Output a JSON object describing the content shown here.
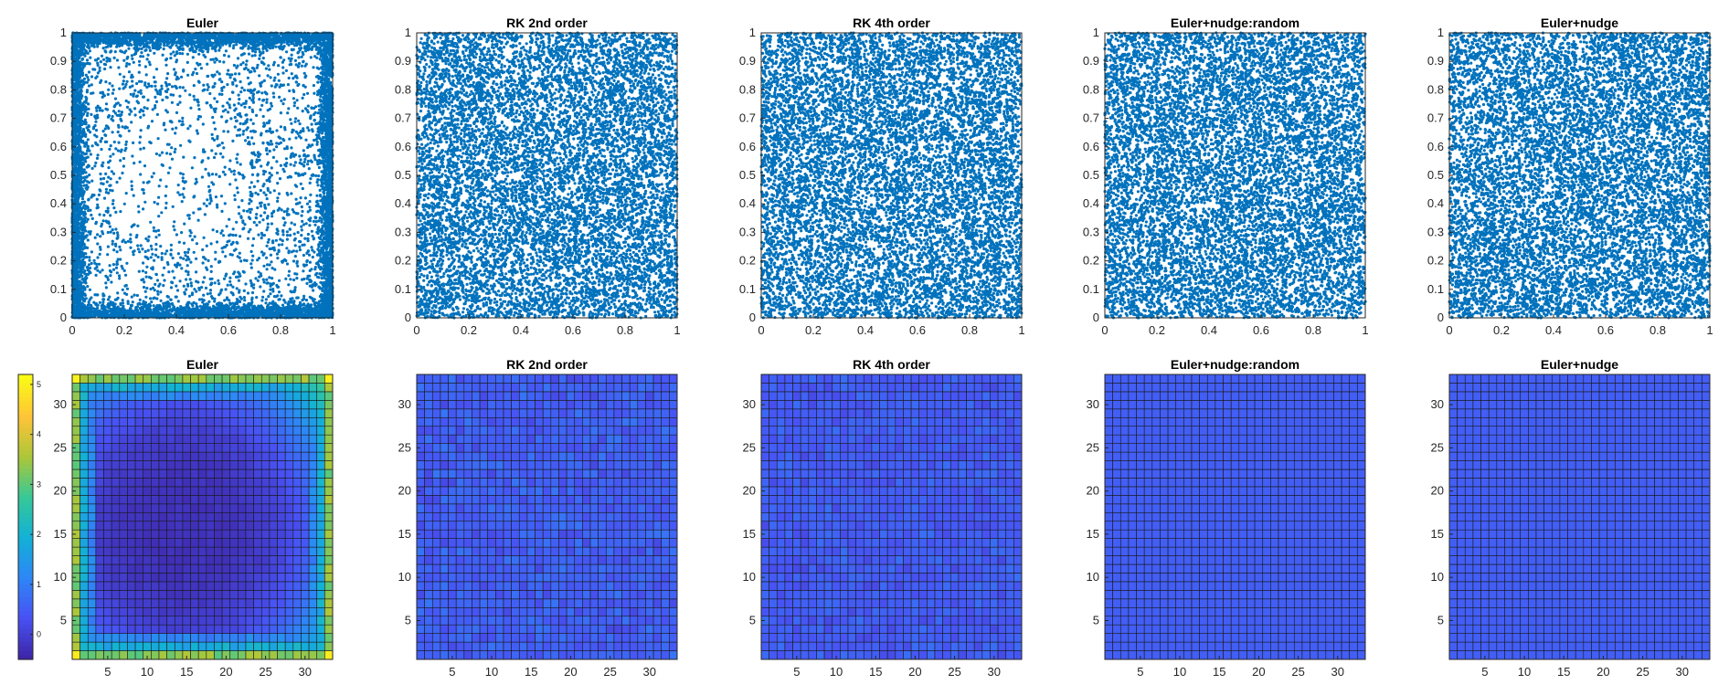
{
  "figure": {
    "colorbar": {
      "ticks": [
        0,
        1,
        2,
        3,
        4,
        5
      ],
      "range": [
        -0.5,
        5.2
      ],
      "colormap": "parula"
    }
  },
  "chart_data": [
    {
      "type": "scatter",
      "title": "Euler",
      "xlabel": "",
      "ylabel": "",
      "xlim": [
        0,
        1
      ],
      "ylim": [
        0,
        1
      ],
      "xticks": [
        "0",
        "0.2",
        "0.4",
        "0.6",
        "0.8",
        "1"
      ],
      "yticks": [
        "0",
        "0.1",
        "0.2",
        "0.3",
        "0.4",
        "0.5",
        "0.6",
        "0.7",
        "0.8",
        "0.9",
        "1"
      ],
      "marker_color": "#0072BD",
      "distribution": "edge-concentrated",
      "approx_points": 10000,
      "grid": false
    },
    {
      "type": "scatter",
      "title": "RK 2nd order",
      "xlabel": "",
      "ylabel": "",
      "xlim": [
        0,
        1
      ],
      "ylim": [
        0,
        1
      ],
      "xticks": [
        "0",
        "0.2",
        "0.4",
        "0.6",
        "0.8",
        "1"
      ],
      "yticks": [
        "0",
        "0.1",
        "0.2",
        "0.3",
        "0.4",
        "0.5",
        "0.6",
        "0.7",
        "0.8",
        "0.9",
        "1"
      ],
      "marker_color": "#0072BD",
      "distribution": "near-uniform",
      "approx_points": 10000,
      "grid": false
    },
    {
      "type": "scatter",
      "title": "RK 4th order",
      "xlabel": "",
      "ylabel": "",
      "xlim": [
        0,
        1
      ],
      "ylim": [
        0,
        1
      ],
      "xticks": [
        "0",
        "0.2",
        "0.4",
        "0.6",
        "0.8",
        "1"
      ],
      "yticks": [
        "0",
        "0.1",
        "0.2",
        "0.3",
        "0.4",
        "0.5",
        "0.6",
        "0.7",
        "0.8",
        "0.9",
        "1"
      ],
      "marker_color": "#0072BD",
      "distribution": "near-uniform",
      "approx_points": 10000,
      "grid": false
    },
    {
      "type": "scatter",
      "title": "Euler+nudge:random",
      "xlabel": "",
      "ylabel": "",
      "xlim": [
        0,
        1
      ],
      "ylim": [
        0,
        1
      ],
      "xticks": [
        "0",
        "0.2",
        "0.4",
        "0.6",
        "0.8",
        "1"
      ],
      "yticks": [
        "0",
        "0.1",
        "0.2",
        "0.3",
        "0.4",
        "0.5",
        "0.6",
        "0.7",
        "0.8",
        "0.9",
        "1"
      ],
      "marker_color": "#0072BD",
      "distribution": "uniform",
      "approx_points": 10000,
      "grid": false
    },
    {
      "type": "scatter",
      "title": "Euler+nudge",
      "xlabel": "",
      "ylabel": "",
      "xlim": [
        0,
        1
      ],
      "ylim": [
        0,
        1
      ],
      "xticks": [
        "0",
        "0.2",
        "0.4",
        "0.6",
        "0.8",
        "1"
      ],
      "yticks": [
        "0",
        "0.1",
        "0.2",
        "0.3",
        "0.4",
        "0.5",
        "0.6",
        "0.7",
        "0.8",
        "0.9",
        "1"
      ],
      "marker_color": "#0072BD",
      "distribution": "uniform",
      "approx_points": 10000,
      "grid": false
    },
    {
      "type": "heatmap",
      "title": "Euler",
      "xlabel": "",
      "ylabel": "",
      "grid_size": 33,
      "xlim": [
        0.5,
        33.5
      ],
      "ylim": [
        0.5,
        33.5
      ],
      "xticks": [
        5,
        10,
        15,
        20,
        25,
        30
      ],
      "yticks": [
        5,
        10,
        15,
        20,
        25,
        30
      ],
      "pattern": "bowl: ~0 at center rising to ~3-5 at edges and corners",
      "center_value": -0.3,
      "edge_value": 3.0,
      "corner_value": 5.0,
      "colorbar": true
    },
    {
      "type": "heatmap",
      "title": "RK 2nd order",
      "xlabel": "",
      "ylabel": "",
      "grid_size": 33,
      "xlim": [
        0.5,
        33.5
      ],
      "ylim": [
        0.5,
        33.5
      ],
      "xticks": [
        5,
        10,
        15,
        20,
        25,
        30
      ],
      "yticks": [
        5,
        10,
        15,
        20,
        25,
        30
      ],
      "pattern": "near-flat with small noise",
      "mean_value": 0.5,
      "noise_amplitude": 0.35
    },
    {
      "type": "heatmap",
      "title": "RK 4th order",
      "xlabel": "",
      "ylabel": "",
      "grid_size": 33,
      "xlim": [
        0.5,
        33.5
      ],
      "ylim": [
        0.5,
        33.5
      ],
      "xticks": [
        5,
        10,
        15,
        20,
        25,
        30
      ],
      "yticks": [
        5,
        10,
        15,
        20,
        25,
        30
      ],
      "pattern": "near-flat with small noise",
      "mean_value": 0.45,
      "noise_amplitude": 0.3
    },
    {
      "type": "heatmap",
      "title": "Euler+nudge:random",
      "xlabel": "",
      "ylabel": "",
      "grid_size": 33,
      "xlim": [
        0.5,
        33.5
      ],
      "ylim": [
        0.5,
        33.5
      ],
      "xticks": [
        5,
        10,
        15,
        20,
        25,
        30
      ],
      "yticks": [
        5,
        10,
        15,
        20,
        25,
        30
      ],
      "pattern": "flat",
      "mean_value": 0.5,
      "noise_amplitude": 0
    },
    {
      "type": "heatmap",
      "title": "Euler+nudge",
      "xlabel": "",
      "ylabel": "",
      "grid_size": 33,
      "xlim": [
        0.5,
        33.5
      ],
      "ylim": [
        0.5,
        33.5
      ],
      "xticks": [
        5,
        10,
        15,
        20,
        25,
        30
      ],
      "yticks": [
        5,
        10,
        15,
        20,
        25,
        30
      ],
      "pattern": "flat",
      "mean_value": 0.5,
      "noise_amplitude": 0
    }
  ]
}
